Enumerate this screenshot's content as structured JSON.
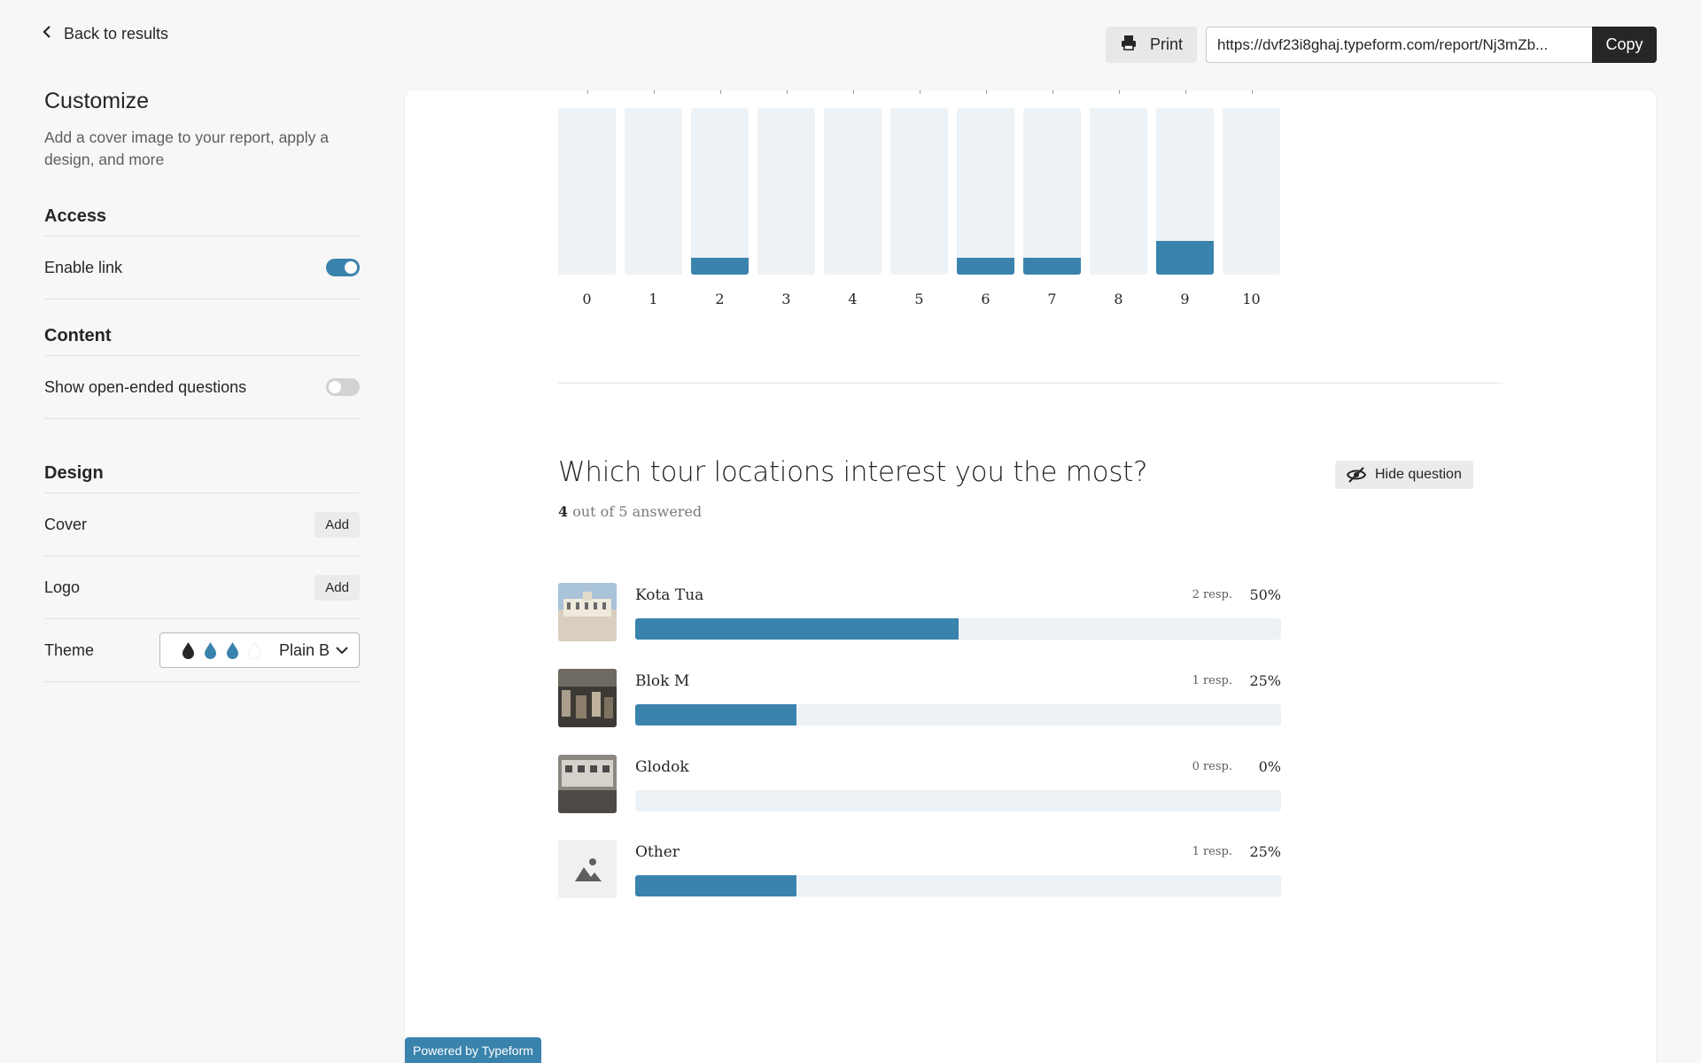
{
  "header": {
    "back_label": "Back to results",
    "print_label": "Print",
    "report_url": "https://dvf23i8ghaj.typeform.com/report/Nj3mZb...",
    "copy_label": "Copy"
  },
  "sidebar": {
    "title": "Customize",
    "description": "Add a cover image to your report, apply a design, and more",
    "access": {
      "title": "Access",
      "enable_link_label": "Enable link",
      "enable_link_on": true
    },
    "content": {
      "title": "Content",
      "open_ended_label": "Show open-ended questions",
      "open_ended_on": false
    },
    "design": {
      "title": "Design",
      "cover_label": "Cover",
      "cover_button": "Add",
      "logo_label": "Logo",
      "logo_button": "Add",
      "theme_label": "Theme",
      "theme_value": "Plain B",
      "theme_drop_colors": [
        "#262627",
        "#3a83ad",
        "#3a83ad",
        "#ffffff"
      ]
    }
  },
  "scale_chart": {
    "categories": [
      "0",
      "1",
      "2",
      "3",
      "4",
      "5",
      "6",
      "7",
      "8",
      "9",
      "10"
    ],
    "values": [
      0,
      0,
      1,
      0,
      0,
      0,
      1,
      1,
      0,
      2,
      0
    ],
    "max": 10,
    "bar_color": "#3a83ad",
    "track_color": "#ecf2f5"
  },
  "question": {
    "title": "Which tour locations interest you the most?",
    "answered_count": "4",
    "answered_rest": " out of 5 answered",
    "hide_label": "Hide question",
    "options": [
      {
        "label": "Kota Tua",
        "resp": "2 resp.",
        "pct_label": "50%",
        "pct": 50,
        "thumb": "kota-tua-photo"
      },
      {
        "label": "Blok M",
        "resp": "1 resp.",
        "pct_label": "25%",
        "pct": 25,
        "thumb": "blok-m-photo"
      },
      {
        "label": "Glodok",
        "resp": "0 resp.",
        "pct_label": "0%",
        "pct": 0,
        "thumb": "glodok-photo"
      },
      {
        "label": "Other",
        "resp": "1 resp.",
        "pct_label": "25%",
        "pct": 25,
        "thumb": "image-placeholder-icon"
      }
    ]
  },
  "footer": {
    "powered_label": "Powered by Typeform"
  }
}
